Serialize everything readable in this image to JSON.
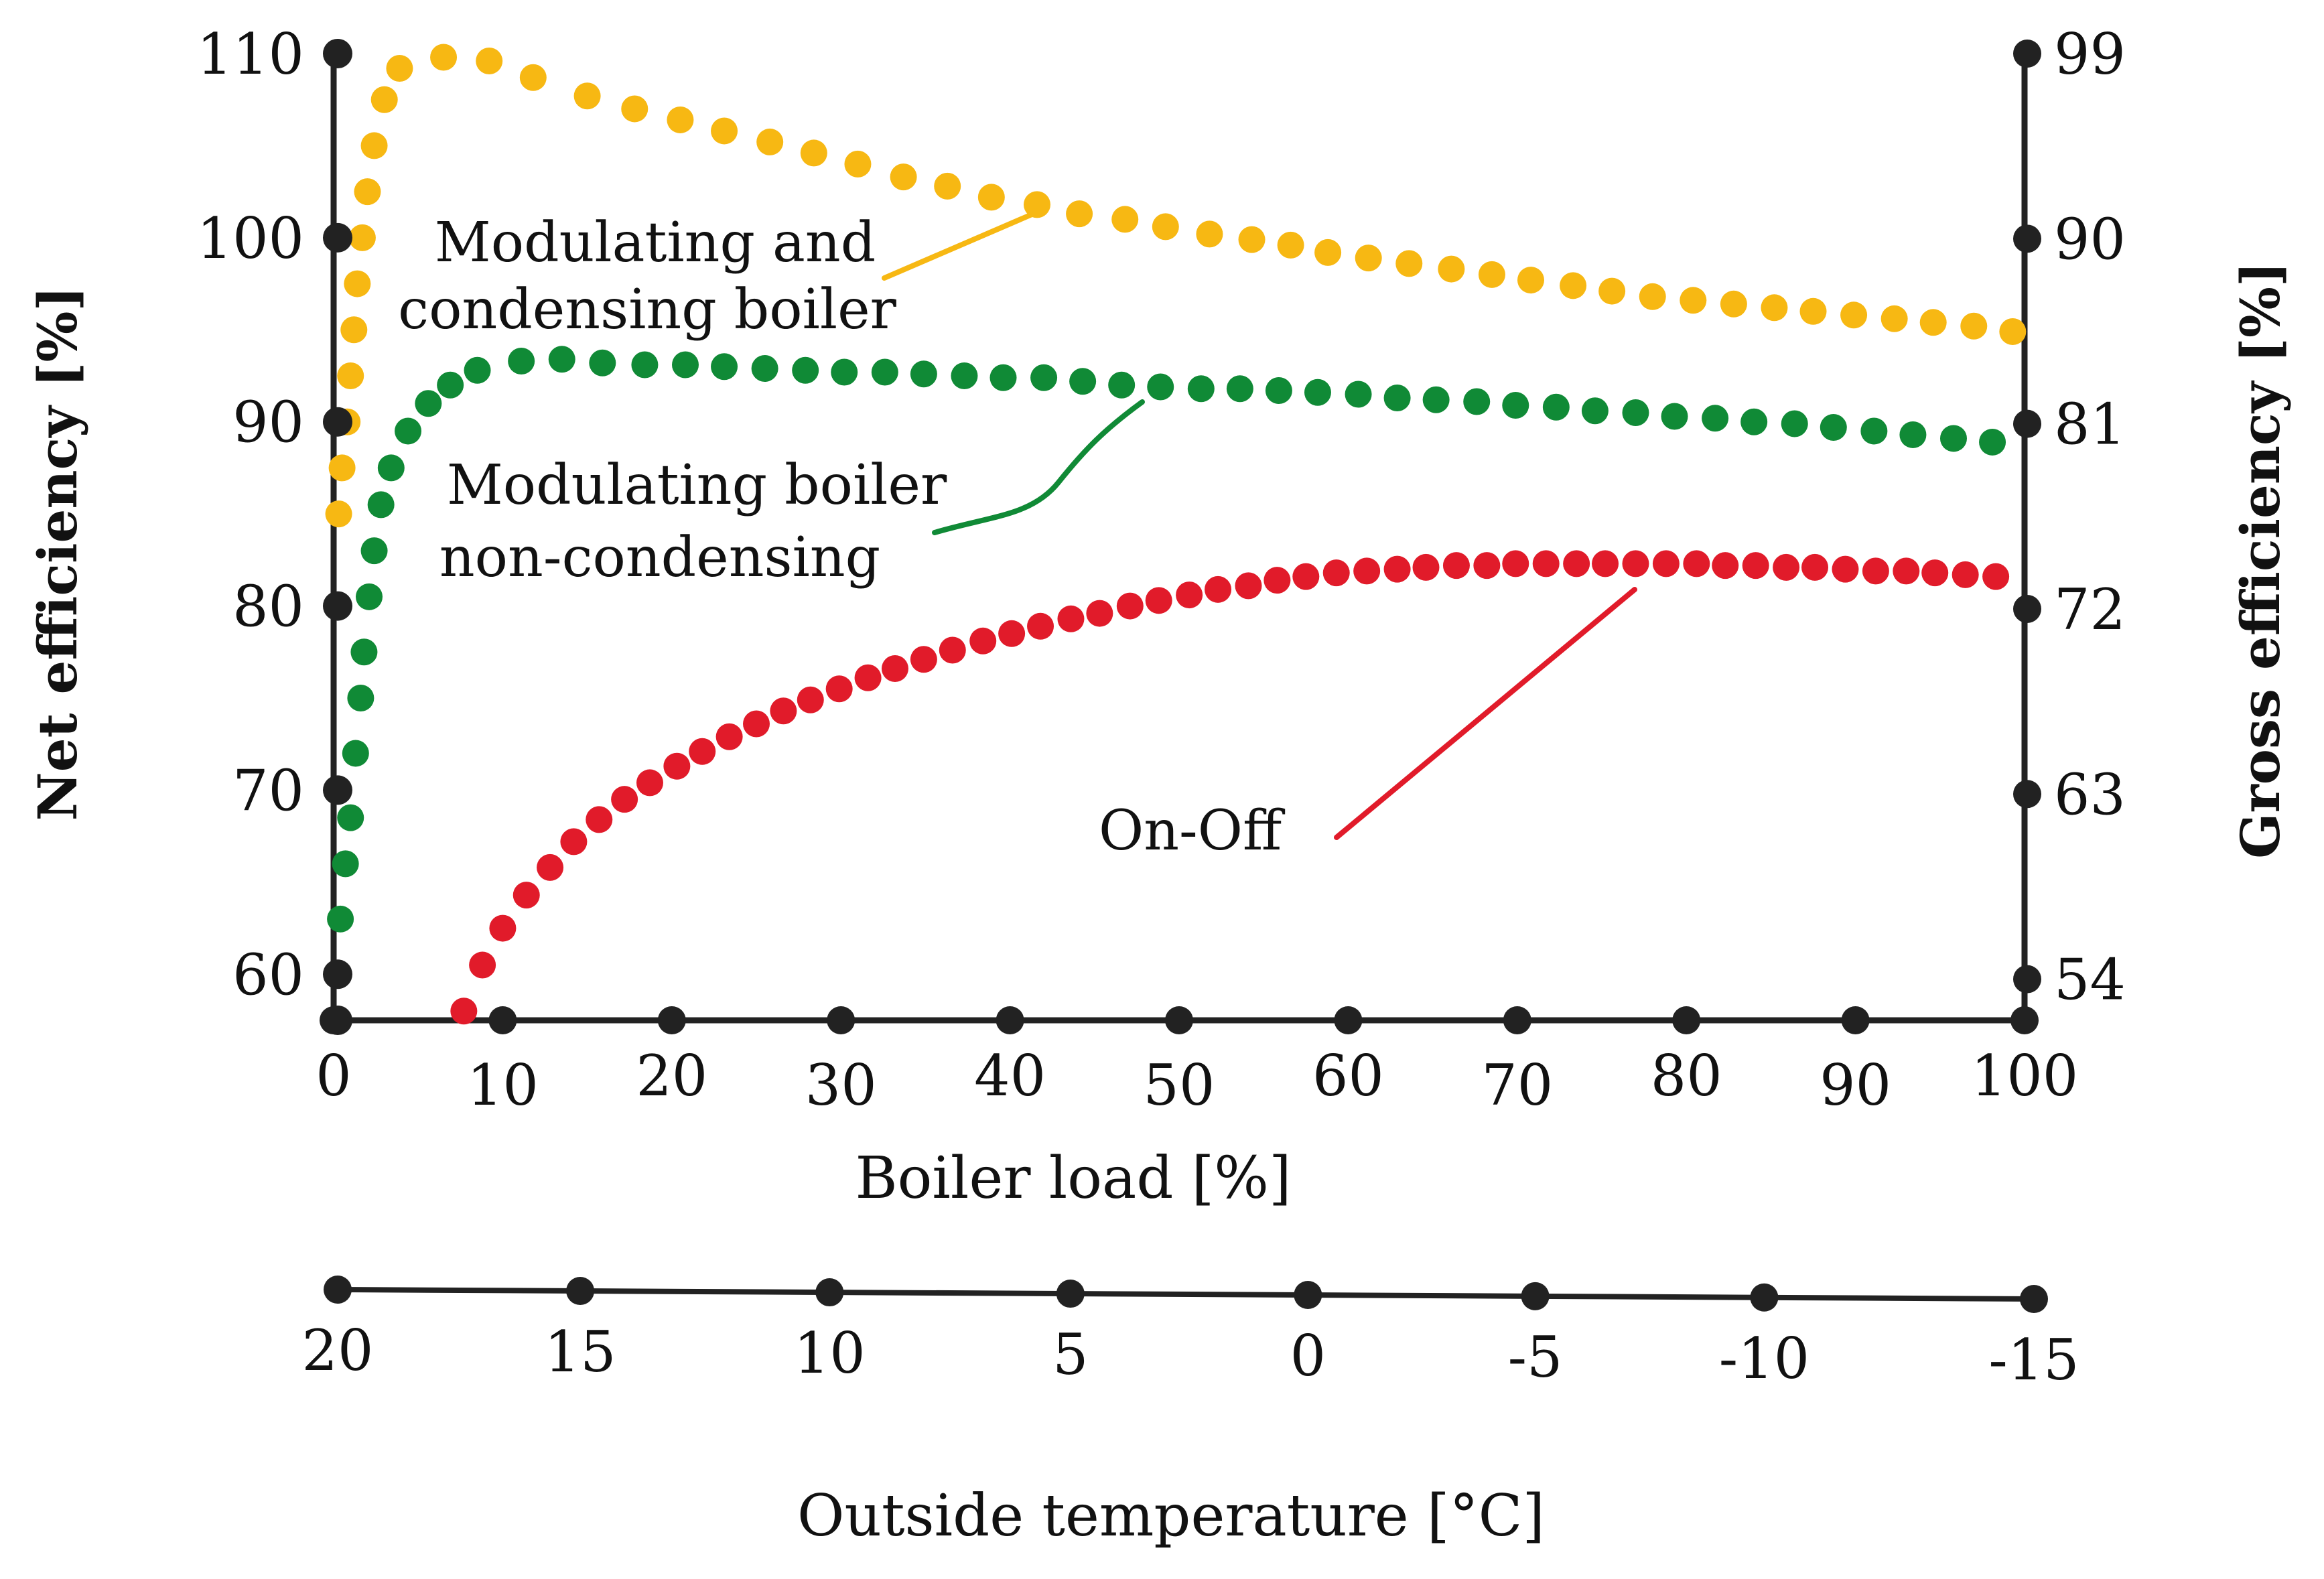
{
  "chart_data": {
    "type": "scatter",
    "title": "",
    "xlabel": "Boiler load [%]",
    "ylabel": "Net efficiency [%]",
    "y2label": "Gross efficiency [%]",
    "x2label": "Outside temperature [°C]",
    "xlim": [
      0,
      100
    ],
    "ylim": [
      57.5,
      110
    ],
    "y2lim": [
      52,
      99
    ],
    "x_ticks": [
      0,
      10,
      20,
      30,
      40,
      50,
      60,
      70,
      80,
      90,
      100
    ],
    "y_ticks": [
      60,
      70,
      80,
      90,
      100,
      110
    ],
    "y2_ticks": [
      54,
      63,
      72,
      81,
      90,
      99
    ],
    "x2_ticks": [
      {
        "label": "20",
        "load": 0
      },
      {
        "label": "15",
        "load": 14.3
      },
      {
        "label": "10",
        "load": 29
      },
      {
        "label": "5",
        "load": 43.2
      },
      {
        "label": "0",
        "load": 57.2
      },
      {
        "label": "-5",
        "load": 70.6
      },
      {
        "label": "-10",
        "load": 84.1
      },
      {
        "label": "-15",
        "load": 100
      }
    ],
    "grid": false,
    "legend": "none",
    "series": [
      {
        "name": "Modulating and condensing boiler",
        "color": "#F7B813",
        "points": [
          [
            0.3,
            85
          ],
          [
            0.5,
            87.5
          ],
          [
            0.8,
            90
          ],
          [
            1.0,
            92.5
          ],
          [
            1.2,
            95
          ],
          [
            1.4,
            97.5
          ],
          [
            1.7,
            100
          ],
          [
            2.0,
            102.5
          ],
          [
            2.4,
            105
          ],
          [
            3.0,
            107.5
          ],
          [
            3.9,
            109.2
          ],
          [
            6.5,
            109.8
          ],
          [
            9.2,
            109.6
          ],
          [
            11.8,
            108.7
          ],
          [
            15.0,
            107.7
          ],
          [
            17.8,
            107.0
          ],
          [
            20.5,
            106.4
          ],
          [
            23.1,
            105.8
          ],
          [
            25.8,
            105.2
          ],
          [
            28.4,
            104.6
          ],
          [
            31.0,
            104.0
          ],
          [
            33.7,
            103.3
          ],
          [
            36.3,
            102.8
          ],
          [
            38.9,
            102.2
          ],
          [
            41.6,
            101.8
          ],
          [
            44.1,
            101.3
          ],
          [
            46.8,
            101.0
          ],
          [
            49.2,
            100.6
          ],
          [
            51.8,
            100.2
          ],
          [
            54.3,
            99.9
          ],
          [
            56.6,
            99.6
          ],
          [
            58.8,
            99.2
          ],
          [
            61.2,
            98.9
          ],
          [
            63.6,
            98.6
          ],
          [
            66.1,
            98.3
          ],
          [
            68.5,
            98.0
          ],
          [
            70.8,
            97.7
          ],
          [
            73.3,
            97.4
          ],
          [
            75.6,
            97.1
          ],
          [
            78.0,
            96.8
          ],
          [
            80.4,
            96.6
          ],
          [
            82.8,
            96.4
          ],
          [
            85.2,
            96.2
          ],
          [
            87.5,
            96.0
          ],
          [
            89.9,
            95.8
          ],
          [
            92.3,
            95.6
          ],
          [
            94.6,
            95.4
          ],
          [
            97.0,
            95.2
          ],
          [
            99.3,
            94.9
          ]
        ]
      },
      {
        "name": "Modulating boiler non-condensing",
        "color": "#108A36",
        "points": [
          [
            0.4,
            63
          ],
          [
            0.7,
            66
          ],
          [
            1.0,
            68.5
          ],
          [
            1.3,
            72
          ],
          [
            1.6,
            75
          ],
          [
            1.8,
            77.5
          ],
          [
            2.1,
            80.5
          ],
          [
            2.4,
            83
          ],
          [
            2.8,
            85.5
          ],
          [
            3.4,
            87.5
          ],
          [
            4.4,
            89.5
          ],
          [
            5.6,
            91
          ],
          [
            6.9,
            92
          ],
          [
            8.5,
            92.8
          ],
          [
            11.1,
            93.3
          ],
          [
            13.5,
            93.4
          ],
          [
            15.9,
            93.2
          ],
          [
            18.4,
            93.1
          ],
          [
            20.8,
            93.1
          ],
          [
            23.1,
            93.0
          ],
          [
            25.5,
            92.9
          ],
          [
            27.9,
            92.8
          ],
          [
            30.2,
            92.7
          ],
          [
            32.6,
            92.7
          ],
          [
            34.9,
            92.6
          ],
          [
            37.3,
            92.5
          ],
          [
            39.6,
            92.4
          ],
          [
            42.0,
            92.4
          ],
          [
            44.3,
            92.2
          ],
          [
            46.6,
            92.0
          ],
          [
            48.9,
            91.9
          ],
          [
            51.3,
            91.8
          ],
          [
            53.6,
            91.8
          ],
          [
            55.9,
            91.7
          ],
          [
            58.2,
            91.6
          ],
          [
            60.6,
            91.5
          ],
          [
            62.9,
            91.3
          ],
          [
            65.2,
            91.2
          ],
          [
            67.6,
            91.1
          ],
          [
            69.9,
            90.9
          ],
          [
            72.3,
            90.8
          ],
          [
            74.6,
            90.6
          ],
          [
            77.0,
            90.5
          ],
          [
            79.3,
            90.3
          ],
          [
            81.7,
            90.2
          ],
          [
            84.0,
            90.0
          ],
          [
            86.4,
            89.9
          ],
          [
            88.7,
            89.7
          ],
          [
            91.1,
            89.5
          ],
          [
            93.4,
            89.3
          ],
          [
            95.8,
            89.1
          ],
          [
            98.1,
            88.9
          ]
        ]
      },
      {
        "name": "On-Off",
        "color": "#E11B2A",
        "points": [
          [
            7.7,
            58.0
          ],
          [
            8.8,
            60.5
          ],
          [
            10.0,
            62.5
          ],
          [
            11.4,
            64.3
          ],
          [
            12.8,
            65.8
          ],
          [
            14.2,
            67.2
          ],
          [
            15.7,
            68.4
          ],
          [
            17.2,
            69.5
          ],
          [
            18.7,
            70.4
          ],
          [
            20.3,
            71.3
          ],
          [
            21.8,
            72.1
          ],
          [
            23.4,
            72.9
          ],
          [
            25.0,
            73.6
          ],
          [
            26.6,
            74.3
          ],
          [
            28.2,
            74.9
          ],
          [
            29.9,
            75.5
          ],
          [
            31.6,
            76.1
          ],
          [
            33.2,
            76.6
          ],
          [
            34.9,
            77.1
          ],
          [
            36.6,
            77.6
          ],
          [
            38.4,
            78.1
          ],
          [
            40.1,
            78.5
          ],
          [
            41.8,
            78.9
          ],
          [
            43.6,
            79.3
          ],
          [
            45.3,
            79.6
          ],
          [
            47.1,
            80.0
          ],
          [
            48.8,
            80.3
          ],
          [
            50.6,
            80.6
          ],
          [
            52.3,
            80.9
          ],
          [
            54.1,
            81.1
          ],
          [
            55.8,
            81.4
          ],
          [
            57.5,
            81.6
          ],
          [
            59.3,
            81.8
          ],
          [
            61.1,
            81.9
          ],
          [
            62.9,
            82.0
          ],
          [
            64.6,
            82.1
          ],
          [
            66.4,
            82.2
          ],
          [
            68.2,
            82.2
          ],
          [
            69.9,
            82.3
          ],
          [
            71.7,
            82.3
          ],
          [
            73.5,
            82.3
          ],
          [
            75.2,
            82.3
          ],
          [
            77.0,
            82.3
          ],
          [
            78.8,
            82.3
          ],
          [
            80.6,
            82.3
          ],
          [
            82.3,
            82.2
          ],
          [
            84.1,
            82.2
          ],
          [
            85.9,
            82.1
          ],
          [
            87.6,
            82.1
          ],
          [
            89.4,
            82.0
          ],
          [
            91.2,
            81.9
          ],
          [
            93.0,
            81.9
          ],
          [
            94.7,
            81.8
          ],
          [
            96.5,
            81.7
          ],
          [
            98.3,
            81.6
          ]
        ]
      }
    ],
    "annotations": [
      {
        "lines": [
          "Modulating and",
          "condensing boiler"
        ],
        "color": "#F7B813"
      },
      {
        "lines": [
          "Modulating boiler",
          "non-condensing"
        ],
        "color": "#108A36"
      },
      {
        "lines": [
          "On-Off"
        ],
        "color": "#E11B2A"
      }
    ],
    "axis_color": "#222222",
    "text_color": "#111111"
  }
}
